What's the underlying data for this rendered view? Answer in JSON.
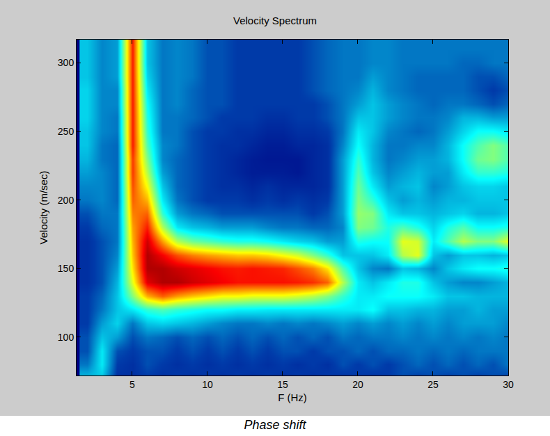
{
  "chart_data": {
    "type": "heatmap",
    "title": "Velocity Spectrum",
    "x_label": "F (Hz)",
    "y_label": "Velocity (m/sec)",
    "caption": "Phase shift",
    "color": "Jet",
    "grid": false,
    "xlim": [
      1.3,
      30
    ],
    "ylim": [
      72,
      317
    ],
    "xticks": [
      5,
      10,
      15,
      20,
      25,
      30
    ],
    "yticks": [
      100,
      150,
      200,
      250,
      300
    ],
    "zlim": [
      0,
      1
    ],
    "x": [
      2,
      3,
      4,
      5,
      6,
      7,
      8,
      9,
      10,
      11,
      12,
      13,
      14,
      15,
      16,
      17,
      18,
      19,
      20,
      21,
      22,
      23,
      24,
      25,
      26,
      27,
      28,
      29,
      30
    ],
    "y": [
      70,
      80,
      90,
      100,
      110,
      120,
      130,
      140,
      150,
      160,
      170,
      180,
      190,
      200,
      210,
      220,
      230,
      240,
      250,
      260,
      270,
      280,
      290,
      300,
      310,
      320
    ],
    "cells": [
      [
        0.3,
        0.3,
        0.1,
        0.1,
        0.12,
        0.1,
        0.12,
        0.1,
        0.12,
        0.1,
        0.12,
        0.1,
        0.12,
        0.1,
        0.12,
        0.1,
        0.12,
        0.1,
        0.12,
        0.1,
        0.12,
        0.15,
        0.12,
        0.15,
        0.12,
        0.15,
        0.12,
        0.15,
        0.12
      ],
      [
        0.2,
        0.35,
        0.12,
        0.1,
        0.15,
        0.12,
        0.1,
        0.12,
        0.1,
        0.12,
        0.1,
        0.12,
        0.1,
        0.12,
        0.1,
        0.12,
        0.1,
        0.15,
        0.12,
        0.15,
        0.12,
        0.15,
        0.18,
        0.15,
        0.18,
        0.15,
        0.18,
        0.15,
        0.2
      ],
      [
        0.15,
        0.35,
        0.15,
        0.12,
        0.15,
        0.15,
        0.12,
        0.15,
        0.12,
        0.15,
        0.12,
        0.15,
        0.12,
        0.15,
        0.15,
        0.12,
        0.15,
        0.15,
        0.18,
        0.15,
        0.18,
        0.18,
        0.2,
        0.18,
        0.2,
        0.18,
        0.2,
        0.2,
        0.2
      ],
      [
        0.15,
        0.3,
        0.25,
        0.15,
        0.2,
        0.18,
        0.15,
        0.18,
        0.15,
        0.18,
        0.15,
        0.18,
        0.15,
        0.18,
        0.15,
        0.18,
        0.15,
        0.2,
        0.18,
        0.2,
        0.2,
        0.22,
        0.2,
        0.22,
        0.2,
        0.22,
        0.2,
        0.22,
        0.2
      ],
      [
        0.12,
        0.25,
        0.32,
        0.2,
        0.3,
        0.32,
        0.3,
        0.28,
        0.25,
        0.22,
        0.2,
        0.2,
        0.22,
        0.2,
        0.22,
        0.2,
        0.22,
        0.25,
        0.22,
        0.25,
        0.22,
        0.25,
        0.22,
        0.25,
        0.22,
        0.25,
        0.25,
        0.25,
        0.22
      ],
      [
        0.12,
        0.2,
        0.3,
        0.35,
        0.42,
        0.45,
        0.42,
        0.4,
        0.38,
        0.38,
        0.36,
        0.36,
        0.35,
        0.35,
        0.35,
        0.35,
        0.35,
        0.35,
        0.35,
        0.38,
        0.3,
        0.3,
        0.28,
        0.28,
        0.25,
        0.25,
        0.28,
        0.25,
        0.25
      ],
      [
        0.12,
        0.18,
        0.3,
        0.5,
        0.7,
        0.78,
        0.72,
        0.68,
        0.65,
        0.62,
        0.62,
        0.6,
        0.6,
        0.6,
        0.58,
        0.55,
        0.5,
        0.42,
        0.35,
        0.35,
        0.38,
        0.38,
        0.38,
        0.35,
        0.3,
        0.3,
        0.28,
        0.28,
        0.28
      ],
      [
        0.1,
        0.15,
        0.28,
        0.6,
        0.9,
        0.95,
        0.95,
        0.92,
        0.9,
        0.88,
        0.86,
        0.86,
        0.86,
        0.86,
        0.85,
        0.83,
        0.78,
        0.55,
        0.35,
        0.3,
        0.35,
        0.4,
        0.4,
        0.3,
        0.25,
        0.22,
        0.22,
        0.25,
        0.28
      ],
      [
        0.1,
        0.15,
        0.25,
        0.65,
        0.95,
        0.95,
        0.92,
        0.9,
        0.88,
        0.86,
        0.85,
        0.86,
        0.85,
        0.84,
        0.8,
        0.75,
        0.65,
        0.45,
        0.3,
        0.22,
        0.2,
        0.3,
        0.28,
        0.22,
        0.3,
        0.35,
        0.38,
        0.38,
        0.4
      ],
      [
        0.1,
        0.15,
        0.22,
        0.68,
        0.95,
        0.88,
        0.8,
        0.75,
        0.72,
        0.7,
        0.68,
        0.68,
        0.66,
        0.62,
        0.58,
        0.5,
        0.42,
        0.3,
        0.3,
        0.3,
        0.35,
        0.55,
        0.6,
        0.3,
        0.25,
        0.3,
        0.3,
        0.28,
        0.3
      ],
      [
        0.1,
        0.15,
        0.2,
        0.7,
        0.92,
        0.72,
        0.55,
        0.48,
        0.45,
        0.42,
        0.4,
        0.4,
        0.38,
        0.35,
        0.32,
        0.3,
        0.25,
        0.25,
        0.4,
        0.38,
        0.38,
        0.6,
        0.58,
        0.35,
        0.45,
        0.55,
        0.5,
        0.5,
        0.6
      ],
      [
        0.12,
        0.18,
        0.2,
        0.72,
        0.85,
        0.55,
        0.35,
        0.3,
        0.28,
        0.25,
        0.25,
        0.25,
        0.22,
        0.2,
        0.2,
        0.18,
        0.18,
        0.22,
        0.5,
        0.48,
        0.4,
        0.45,
        0.4,
        0.32,
        0.4,
        0.45,
        0.38,
        0.38,
        0.4
      ],
      [
        0.15,
        0.2,
        0.2,
        0.75,
        0.78,
        0.42,
        0.25,
        0.2,
        0.18,
        0.15,
        0.15,
        0.15,
        0.15,
        0.15,
        0.15,
        0.12,
        0.15,
        0.25,
        0.52,
        0.5,
        0.35,
        0.3,
        0.3,
        0.28,
        0.3,
        0.32,
        0.28,
        0.28,
        0.3
      ],
      [
        0.2,
        0.22,
        0.18,
        0.78,
        0.7,
        0.35,
        0.2,
        0.15,
        0.12,
        0.12,
        0.12,
        0.1,
        0.12,
        0.1,
        0.12,
        0.1,
        0.12,
        0.25,
        0.5,
        0.42,
        0.3,
        0.25,
        0.28,
        0.25,
        0.28,
        0.28,
        0.3,
        0.3,
        0.3
      ],
      [
        0.22,
        0.22,
        0.18,
        0.8,
        0.62,
        0.3,
        0.18,
        0.15,
        0.12,
        0.1,
        0.1,
        0.08,
        0.1,
        0.08,
        0.08,
        0.08,
        0.1,
        0.25,
        0.48,
        0.35,
        0.25,
        0.28,
        0.3,
        0.22,
        0.25,
        0.3,
        0.32,
        0.32,
        0.3
      ],
      [
        0.25,
        0.22,
        0.18,
        0.82,
        0.55,
        0.25,
        0.18,
        0.15,
        0.12,
        0.1,
        0.08,
        0.06,
        0.06,
        0.06,
        0.05,
        0.08,
        0.1,
        0.25,
        0.45,
        0.3,
        0.22,
        0.25,
        0.28,
        0.25,
        0.25,
        0.35,
        0.42,
        0.42,
        0.4
      ],
      [
        0.28,
        0.2,
        0.18,
        0.82,
        0.5,
        0.22,
        0.18,
        0.15,
        0.12,
        0.1,
        0.08,
        0.06,
        0.05,
        0.05,
        0.05,
        0.08,
        0.1,
        0.25,
        0.42,
        0.28,
        0.2,
        0.22,
        0.25,
        0.25,
        0.28,
        0.38,
        0.48,
        0.5,
        0.45
      ],
      [
        0.3,
        0.2,
        0.18,
        0.85,
        0.45,
        0.22,
        0.2,
        0.15,
        0.12,
        0.1,
        0.1,
        0.08,
        0.06,
        0.06,
        0.08,
        0.08,
        0.1,
        0.22,
        0.38,
        0.28,
        0.2,
        0.2,
        0.22,
        0.22,
        0.28,
        0.38,
        0.45,
        0.5,
        0.45
      ],
      [
        0.3,
        0.22,
        0.2,
        0.85,
        0.42,
        0.2,
        0.2,
        0.15,
        0.12,
        0.12,
        0.1,
        0.1,
        0.08,
        0.08,
        0.1,
        0.1,
        0.12,
        0.2,
        0.35,
        0.3,
        0.22,
        0.2,
        0.18,
        0.2,
        0.25,
        0.32,
        0.38,
        0.38,
        0.35
      ],
      [
        0.32,
        0.22,
        0.2,
        0.85,
        0.4,
        0.2,
        0.2,
        0.18,
        0.15,
        0.12,
        0.12,
        0.12,
        0.1,
        0.1,
        0.12,
        0.12,
        0.15,
        0.2,
        0.3,
        0.3,
        0.25,
        0.22,
        0.2,
        0.2,
        0.22,
        0.28,
        0.28,
        0.25,
        0.25
      ],
      [
        0.32,
        0.22,
        0.22,
        0.85,
        0.38,
        0.2,
        0.22,
        0.18,
        0.15,
        0.15,
        0.12,
        0.12,
        0.12,
        0.12,
        0.12,
        0.12,
        0.15,
        0.2,
        0.25,
        0.3,
        0.25,
        0.22,
        0.2,
        0.18,
        0.2,
        0.2,
        0.18,
        0.15,
        0.18
      ],
      [
        0.32,
        0.22,
        0.22,
        0.85,
        0.35,
        0.2,
        0.22,
        0.18,
        0.15,
        0.15,
        0.12,
        0.12,
        0.12,
        0.12,
        0.12,
        0.15,
        0.18,
        0.2,
        0.22,
        0.28,
        0.22,
        0.2,
        0.18,
        0.18,
        0.18,
        0.18,
        0.15,
        0.12,
        0.15
      ],
      [
        0.3,
        0.22,
        0.25,
        0.85,
        0.32,
        0.2,
        0.22,
        0.2,
        0.15,
        0.15,
        0.12,
        0.12,
        0.12,
        0.12,
        0.12,
        0.15,
        0.18,
        0.2,
        0.2,
        0.25,
        0.22,
        0.2,
        0.18,
        0.18,
        0.18,
        0.18,
        0.15,
        0.15,
        0.18
      ],
      [
        0.3,
        0.22,
        0.25,
        0.85,
        0.3,
        0.2,
        0.22,
        0.2,
        0.15,
        0.15,
        0.12,
        0.12,
        0.12,
        0.12,
        0.12,
        0.15,
        0.18,
        0.2,
        0.2,
        0.22,
        0.22,
        0.2,
        0.2,
        0.2,
        0.2,
        0.18,
        0.18,
        0.2,
        0.2
      ],
      [
        0.3,
        0.22,
        0.25,
        0.85,
        0.3,
        0.2,
        0.22,
        0.2,
        0.15,
        0.15,
        0.12,
        0.12,
        0.12,
        0.12,
        0.12,
        0.15,
        0.18,
        0.2,
        0.2,
        0.22,
        0.22,
        0.2,
        0.2,
        0.2,
        0.2,
        0.2,
        0.2,
        0.2,
        0.2
      ],
      [
        0.3,
        0.22,
        0.25,
        0.85,
        0.3,
        0.2,
        0.22,
        0.2,
        0.15,
        0.15,
        0.12,
        0.12,
        0.12,
        0.12,
        0.12,
        0.15,
        0.18,
        0.2,
        0.2,
        0.22,
        0.22,
        0.2,
        0.2,
        0.2,
        0.2,
        0.2,
        0.2,
        0.2,
        0.2
      ]
    ]
  }
}
